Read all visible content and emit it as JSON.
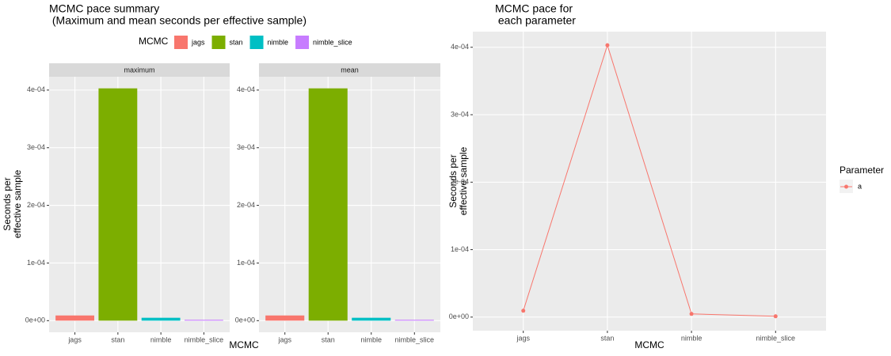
{
  "chart_data": [
    {
      "type": "bar",
      "title_lines": [
        "MCMC pace summary",
        " (Maximum and mean seconds per effective sample)"
      ],
      "x_label": "MCMC",
      "y_label_lines": [
        "Seconds per",
        "effective sample"
      ],
      "legend_title": "MCMC",
      "categories": [
        "jags",
        "stan",
        "nimble",
        "nimble_slice"
      ],
      "colors": [
        "#F8766D",
        "#7CAE00",
        "#00BFC4",
        "#C77CFF"
      ],
      "facets": [
        {
          "name": "maximum",
          "values": [
            9e-06,
            0.000403,
            5e-06,
            1.5e-06
          ]
        },
        {
          "name": "mean",
          "values": [
            9e-06,
            0.000403,
            5e-06,
            1.5e-06
          ]
        }
      ],
      "ylim": [
        -2.015e-05,
        0.00042315
      ],
      "yticks": [
        {
          "value": 0,
          "label": "0e+00"
        },
        {
          "value": 0.0001,
          "label": "1e-04"
        },
        {
          "value": 0.0002,
          "label": "2e-04"
        },
        {
          "value": 0.0003,
          "label": "3e-04"
        },
        {
          "value": 0.0004,
          "label": "4e-04"
        }
      ],
      "grid": true
    },
    {
      "type": "line",
      "title_lines": [
        "MCMC pace for",
        " each parameter"
      ],
      "x_label": "MCMC",
      "y_label_lines": [
        "Seconds per",
        "effective sample"
      ],
      "legend_title": "Parameter",
      "categories": [
        "jags",
        "stan",
        "nimble",
        "nimble_slice"
      ],
      "series": [
        {
          "name": "a",
          "color": "#F8766D",
          "values": [
            9.4e-06,
            0.000403,
            4.7e-06,
            1.2e-06
          ]
        }
      ],
      "ylim": [
        -2.015e-05,
        0.00042315
      ],
      "yticks": [
        {
          "value": 0,
          "label": "0e+00"
        },
        {
          "value": 0.0001,
          "label": "1e-04"
        },
        {
          "value": 0.0002,
          "label": "2e-04"
        },
        {
          "value": 0.0003,
          "label": "3e-04"
        },
        {
          "value": 0.0004,
          "label": "4e-04"
        }
      ],
      "grid": true
    }
  ]
}
